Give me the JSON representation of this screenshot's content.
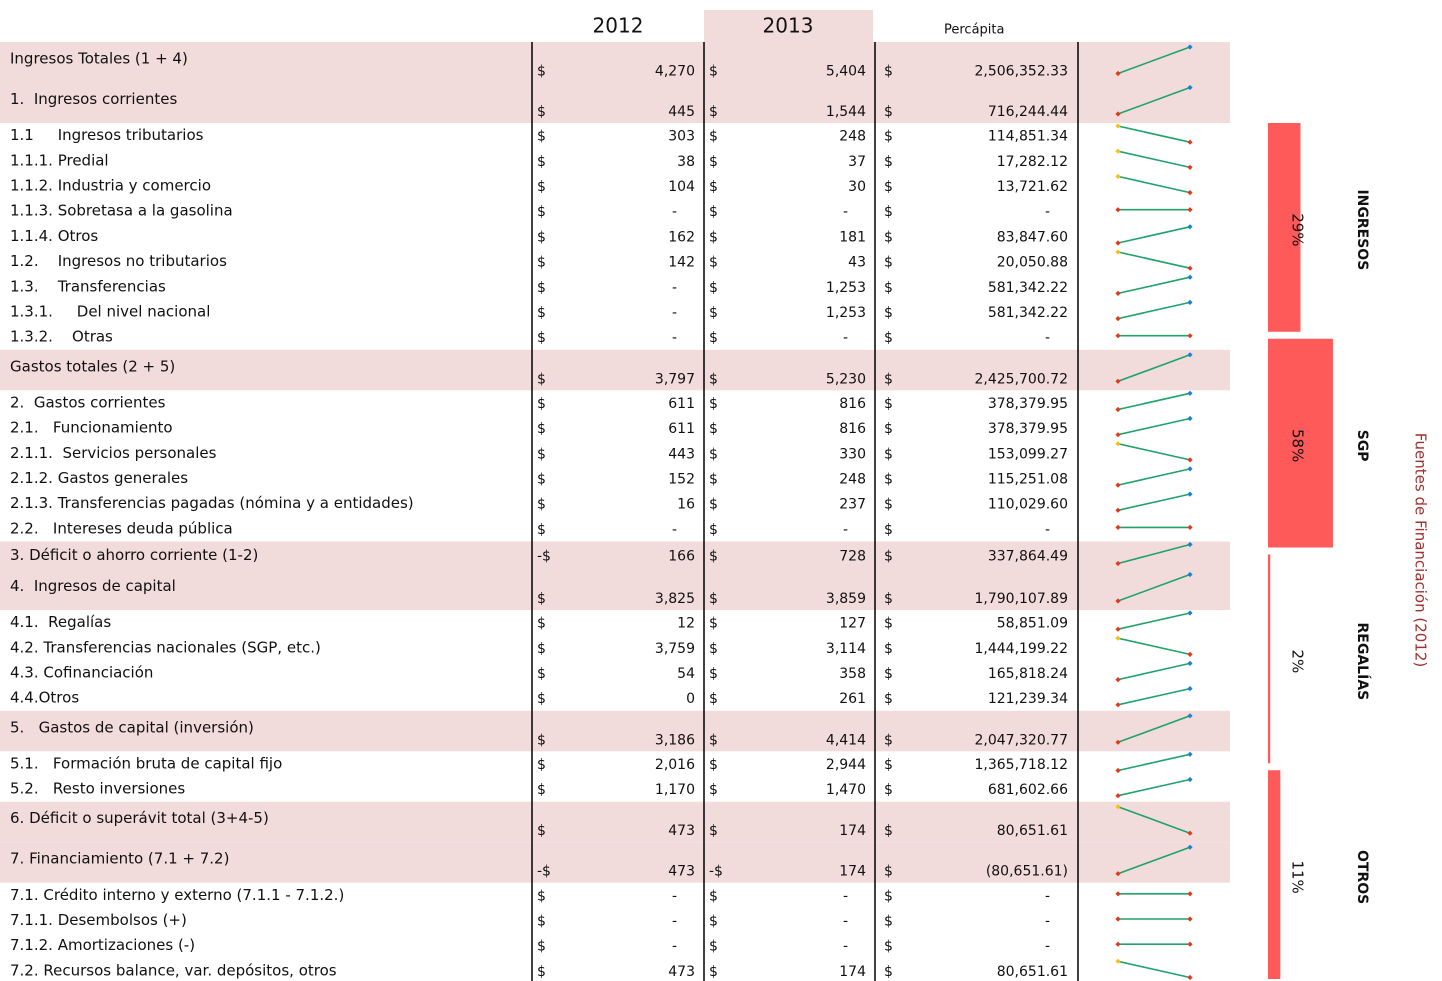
{
  "table": {
    "headers": [
      "2012",
      "2013",
      "Percápita"
    ],
    "rows": [
      {
        "label": "Ingresos Totales (1 + 4)",
        "highlight": true,
        "y2012": {
          "sign": "$",
          "amount": "4,270"
        },
        "y2013": {
          "sign": "$",
          "amount": "5,404"
        },
        "percapita": {
          "sign": "$",
          "amount": "2,506,352.33"
        }
      },
      {
        "label": "1.  Ingresos corrientes",
        "highlight": true,
        "y2012": {
          "sign": "$",
          "amount": "445"
        },
        "y2013": {
          "sign": "$",
          "amount": "1,544"
        },
        "percapita": {
          "sign": "$",
          "amount": "716,244.44"
        }
      },
      {
        "label": "1.1     Ingresos tributarios",
        "y2012": {
          "sign": "$",
          "amount": "303"
        },
        "y2013": {
          "sign": "$",
          "amount": "248"
        },
        "percapita": {
          "sign": "$",
          "amount": "114,851.34"
        }
      },
      {
        "label": "1.1.1. Predial",
        "y2012": {
          "sign": "$",
          "amount": "38"
        },
        "y2013": {
          "sign": "$",
          "amount": "37"
        },
        "percapita": {
          "sign": "$",
          "amount": "17,282.12"
        }
      },
      {
        "label": "1.1.2. Industria y comercio",
        "y2012": {
          "sign": "$",
          "amount": "104"
        },
        "y2013": {
          "sign": "$",
          "amount": "30"
        },
        "percapita": {
          "sign": "$",
          "amount": "13,721.62"
        }
      },
      {
        "label": "1.1.3. Sobretasa a la gasolina",
        "y2012": {
          "sign": "$",
          "amount": "-"
        },
        "y2013": {
          "sign": "$",
          "amount": "-"
        },
        "percapita": {
          "sign": "$",
          "amount": "-"
        }
      },
      {
        "label": "1.1.4. Otros",
        "y2012": {
          "sign": "$",
          "amount": "162"
        },
        "y2013": {
          "sign": "$",
          "amount": "181"
        },
        "percapita": {
          "sign": "$",
          "amount": "83,847.60"
        }
      },
      {
        "label": "1.2.    Ingresos no tributarios",
        "y2012": {
          "sign": "$",
          "amount": "142"
        },
        "y2013": {
          "sign": "$",
          "amount": "43"
        },
        "percapita": {
          "sign": "$",
          "amount": "20,050.88"
        }
      },
      {
        "label": "1.3.    Transferencias",
        "y2012": {
          "sign": "$",
          "amount": "-"
        },
        "y2013": {
          "sign": "$",
          "amount": "1,253"
        },
        "percapita": {
          "sign": "$",
          "amount": "581,342.22"
        }
      },
      {
        "label": "1.3.1.     Del nivel nacional",
        "y2012": {
          "sign": "$",
          "amount": "-"
        },
        "y2013": {
          "sign": "$",
          "amount": "1,253"
        },
        "percapita": {
          "sign": "$",
          "amount": "581,342.22"
        }
      },
      {
        "label": "1.3.2.    Otras",
        "y2012": {
          "sign": "$",
          "amount": "-"
        },
        "y2013": {
          "sign": "$",
          "amount": "-"
        },
        "percapita": {
          "sign": "$",
          "amount": "-"
        }
      },
      {
        "label": "Gastos totales (2 + 5)",
        "highlight": true,
        "y2012": {
          "sign": "$",
          "amount": "3,797"
        },
        "y2013": {
          "sign": "$",
          "amount": "5,230"
        },
        "percapita": {
          "sign": "$",
          "amount": "2,425,700.72"
        }
      },
      {
        "label": "2.  Gastos corrientes",
        "y2012": {
          "sign": "$",
          "amount": "611"
        },
        "y2013": {
          "sign": "$",
          "amount": "816"
        },
        "percapita": {
          "sign": "$",
          "amount": "378,379.95"
        }
      },
      {
        "label": "2.1.   Funcionamiento",
        "y2012": {
          "sign": "$",
          "amount": "611"
        },
        "y2013": {
          "sign": "$",
          "amount": "816"
        },
        "percapita": {
          "sign": "$",
          "amount": "378,379.95"
        }
      },
      {
        "label": "2.1.1.  Servicios personales",
        "y2012": {
          "sign": "$",
          "amount": "443"
        },
        "y2013": {
          "sign": "$",
          "amount": "330"
        },
        "percapita": {
          "sign": "$",
          "amount": "153,099.27"
        }
      },
      {
        "label": "2.1.2. Gastos generales",
        "y2012": {
          "sign": "$",
          "amount": "152"
        },
        "y2013": {
          "sign": "$",
          "amount": "248"
        },
        "percapita": {
          "sign": "$",
          "amount": "115,251.08"
        }
      },
      {
        "label": "2.1.3. Transferencias pagadas (nómina y a entidades)",
        "y2012": {
          "sign": "$",
          "amount": "16"
        },
        "y2013": {
          "sign": "$",
          "amount": "237"
        },
        "percapita": {
          "sign": "$",
          "amount": "110,029.60"
        }
      },
      {
        "label": "2.2.   Intereses deuda pública",
        "y2012": {
          "sign": "$",
          "amount": "-"
        },
        "y2013": {
          "sign": "$",
          "amount": "-"
        },
        "percapita": {
          "sign": "$",
          "amount": "-"
        }
      },
      {
        "label": "3. Déficit o ahorro corriente (1-2)",
        "highlight": true,
        "y2012": {
          "sign": "-$",
          "amount": "166"
        },
        "y2013": {
          "sign": "$",
          "amount": "728"
        },
        "percapita": {
          "sign": "$",
          "amount": "337,864.49"
        }
      },
      {
        "label": "4.  Ingresos de capital",
        "highlight": true,
        "y2012": {
          "sign": "$",
          "amount": "3,825"
        },
        "y2013": {
          "sign": "$",
          "amount": "3,859"
        },
        "percapita": {
          "sign": "$",
          "amount": "1,790,107.89"
        }
      },
      {
        "label": "4.1.  Regalías",
        "y2012": {
          "sign": "$",
          "amount": "12"
        },
        "y2013": {
          "sign": "$",
          "amount": "127"
        },
        "percapita": {
          "sign": "$",
          "amount": "58,851.09"
        }
      },
      {
        "label": "4.2. Transferencias nacionales (SGP, etc.)",
        "y2012": {
          "sign": "$",
          "amount": "3,759"
        },
        "y2013": {
          "sign": "$",
          "amount": "3,114"
        },
        "percapita": {
          "sign": "$",
          "amount": "1,444,199.22"
        }
      },
      {
        "label": "4.3. Cofinanciación",
        "y2012": {
          "sign": "$",
          "amount": "54"
        },
        "y2013": {
          "sign": "$",
          "amount": "358"
        },
        "percapita": {
          "sign": "$",
          "amount": "165,818.24"
        }
      },
      {
        "label": "4.4.Otros",
        "y2012": {
          "sign": "$",
          "amount": "0"
        },
        "y2013": {
          "sign": "$",
          "amount": "261"
        },
        "percapita": {
          "sign": "$",
          "amount": "121,239.34"
        }
      },
      {
        "label": "5.   Gastos de capital (inversión)",
        "highlight": true,
        "y2012": {
          "sign": "$",
          "amount": "3,186"
        },
        "y2013": {
          "sign": "$",
          "amount": "4,414"
        },
        "percapita": {
          "sign": "$",
          "amount": "2,047,320.77"
        }
      },
      {
        "label": "5.1.   Formación bruta de capital fijo",
        "y2012": {
          "sign": "$",
          "amount": "2,016"
        },
        "y2013": {
          "sign": "$",
          "amount": "2,944"
        },
        "percapita": {
          "sign": "$",
          "amount": "1,365,718.12"
        }
      },
      {
        "label": "5.2.   Resto inversiones",
        "y2012": {
          "sign": "$",
          "amount": "1,170"
        },
        "y2013": {
          "sign": "$",
          "amount": "1,470"
        },
        "percapita": {
          "sign": "$",
          "amount": "681,602.66"
        }
      },
      {
        "label": "6. Déficit o superávit total (3+4-5)",
        "highlight": true,
        "y2012": {
          "sign": "$",
          "amount": "473"
        },
        "y2013": {
          "sign": "$",
          "amount": "174"
        },
        "percapita": {
          "sign": "$",
          "amount": "80,651.61"
        }
      },
      {
        "label": "7. Financiamiento (7.1 + 7.2)",
        "highlight": true,
        "y2012": {
          "sign": "-$",
          "amount": "473"
        },
        "y2013": {
          "sign": "-$",
          "amount": "174"
        },
        "percapita": {
          "sign": "$",
          "amount": "(80,651.61)"
        }
      },
      {
        "label": "7.1. Crédito interno y externo (7.1.1 - 7.1.2.)",
        "y2012": {
          "sign": "$",
          "amount": "-"
        },
        "y2013": {
          "sign": "$",
          "amount": "-"
        },
        "percapita": {
          "sign": "$",
          "amount": "-"
        }
      },
      {
        "label": "7.1.1. Desembolsos (+)",
        "y2012": {
          "sign": "$",
          "amount": "-"
        },
        "y2013": {
          "sign": "$",
          "amount": "-"
        },
        "percapita": {
          "sign": "$",
          "amount": "-"
        }
      },
      {
        "label": "7.1.2. Amortizaciones (-)",
        "y2012": {
          "sign": "$",
          "amount": "-"
        },
        "y2013": {
          "sign": "$",
          "amount": "-"
        },
        "percapita": {
          "sign": "$",
          "amount": "-"
        }
      },
      {
        "label": "7.2. Recursos balance, var. depósitos, otros",
        "y2012": {
          "sign": "$",
          "amount": "473"
        },
        "y2013": {
          "sign": "$",
          "amount": "174"
        },
        "percapita": {
          "sign": "$",
          "amount": "80,651.61"
        }
      }
    ]
  },
  "chart_data": {
    "type": "bar",
    "title": "Fuentes de Financiación (2012)",
    "categories": [
      "INGRESOS",
      "SGP",
      "REGALÍAS",
      "OTROS"
    ],
    "values": [
      29,
      58,
      2,
      11
    ],
    "value_labels": [
      "29%",
      "58%",
      "2%",
      "11%"
    ],
    "color": "#ff5a5a"
  }
}
